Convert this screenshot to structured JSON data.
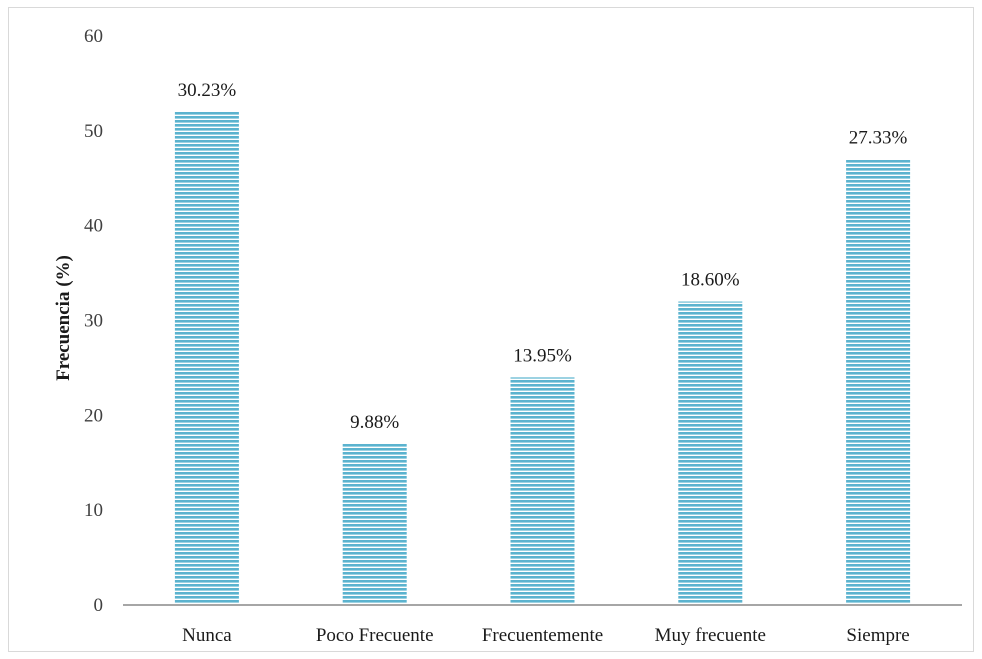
{
  "chart_data": {
    "type": "bar",
    "title": "",
    "xlabel": "",
    "ylabel": "Frecuencia (%)",
    "categories": [
      "Nunca",
      "Poco Frecuente",
      "Frecuentemente",
      "Muy frecuente",
      "Siempre"
    ],
    "values": [
      52,
      17,
      24,
      32,
      47
    ],
    "data_labels": [
      "30.23%",
      "9.88%",
      "13.95%",
      "18.60%",
      "27.33%"
    ],
    "ylim": [
      0,
      60
    ],
    "yticks": [
      "0",
      "10",
      "20",
      "30",
      "40",
      "50",
      "60"
    ],
    "grid": false,
    "legend": "none",
    "bar_color": "#5bb3cf",
    "bar_stripe_color": "#ffffff",
    "axis_color": "#a6a6a6"
  }
}
